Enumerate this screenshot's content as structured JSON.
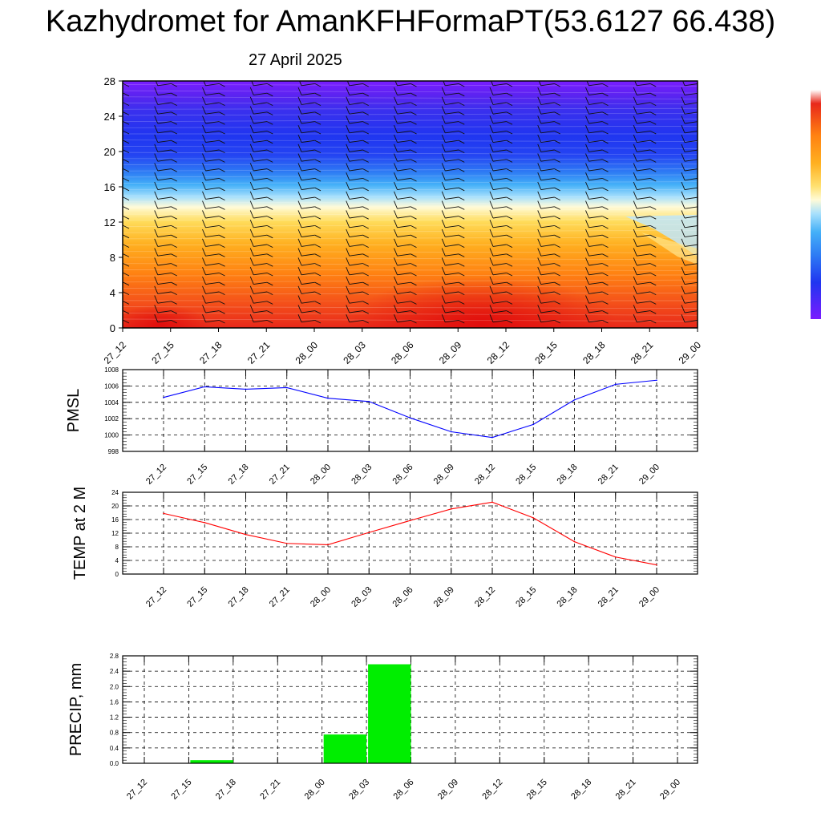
{
  "title": "Kazhydromet for AmanKFHFormaPT(53.6127 66.438)",
  "subtitle": "27 April 2025",
  "time_labels": [
    "27_12",
    "27_15",
    "27_18",
    "27_21",
    "28_00",
    "28_03",
    "28_06",
    "28_09",
    "28_12",
    "28_15",
    "28_18",
    "28_21",
    "29_00"
  ],
  "colors": {
    "pmsl_line": "#0000ff",
    "temp_line": "#ff0000",
    "precip_bar": "#00ee00",
    "colorbar": [
      "#6a00d8",
      "#3a2af0",
      "#1f4cf5",
      "#2e8cf5",
      "#4ab8f8",
      "#9fdcfc",
      "#f0f8ff",
      "#fff6b0",
      "#ffd84a",
      "#ffac1a",
      "#ff7a10",
      "#f04010",
      "#d80c0c",
      "#ffffff"
    ]
  },
  "chart_data": [
    {
      "type": "heatmap",
      "title": "",
      "xlabel": "",
      "ylabel": "",
      "categories": [
        "27_12",
        "27_15",
        "27_18",
        "27_21",
        "28_00",
        "28_03",
        "28_06",
        "28_09",
        "28_12",
        "28_15",
        "28_18",
        "28_21",
        "29_00"
      ],
      "ylim": [
        0,
        28
      ],
      "yticks": [
        0,
        4,
        8,
        12,
        16,
        20,
        24,
        28
      ],
      "wind_barbs": true
    },
    {
      "type": "line",
      "ylabel": "PMSL",
      "categories": [
        "27_12",
        "27_15",
        "27_18",
        "27_21",
        "28_00",
        "28_03",
        "28_06",
        "28_09",
        "28_12",
        "28_15",
        "28_18",
        "28_21",
        "29_00"
      ],
      "values": [
        1004.6,
        1005.9,
        1005.6,
        1005.8,
        1004.5,
        1004.1,
        1002.1,
        1000.4,
        999.7,
        1001.3,
        1004.3,
        1006.2,
        1006.7
      ],
      "ylim": [
        998,
        1008
      ],
      "yticks": [
        998,
        1000,
        1002,
        1004,
        1006,
        1008
      ],
      "grid": true
    },
    {
      "type": "line",
      "ylabel": "TEMP at 2 M",
      "categories": [
        "27_12",
        "27_15",
        "27_18",
        "27_21",
        "28_00",
        "28_03",
        "28_06",
        "28_09",
        "28_12",
        "28_15",
        "28_18",
        "28_21",
        "29_00"
      ],
      "values": [
        17.8,
        15.1,
        11.6,
        9.0,
        8.6,
        12.2,
        15.7,
        19.1,
        21.1,
        16.5,
        9.5,
        5.0,
        2.7
      ],
      "ylim": [
        0,
        24
      ],
      "yticks": [
        0,
        4,
        8,
        12,
        16,
        20,
        24
      ],
      "grid": true
    },
    {
      "type": "bar",
      "ylabel": "PRECIP, mm",
      "categories": [
        "27_12",
        "27_15",
        "27_18",
        "27_21",
        "28_00",
        "28_03",
        "28_06",
        "28_09",
        "28_12",
        "28_15",
        "28_18",
        "28_21",
        "29_00"
      ],
      "values": [
        0,
        0,
        0.08,
        0,
        0,
        0.75,
        2.58,
        0,
        0,
        0,
        0,
        0,
        0
      ],
      "ylim": [
        0,
        2.8
      ],
      "yticks": [
        "0.0",
        "0.4",
        "0.8",
        "1.2",
        "1.6",
        "2.0",
        "2.4",
        "2.8"
      ],
      "grid": true
    }
  ]
}
